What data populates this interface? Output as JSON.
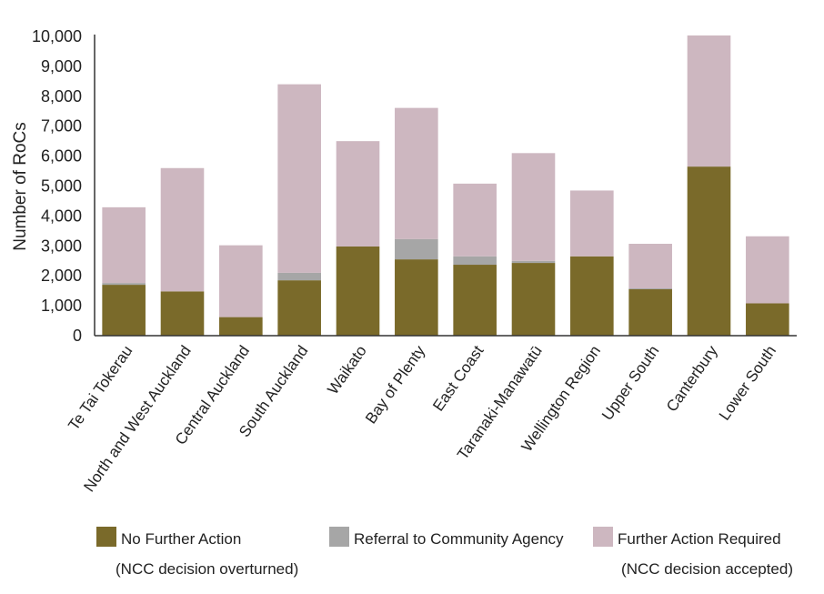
{
  "chart_data": {
    "type": "bar",
    "stacked": true,
    "ylabel": "Number of RoCs",
    "ylim": [
      0,
      10000
    ],
    "yticks": [
      0,
      1000,
      2000,
      3000,
      4000,
      5000,
      6000,
      7000,
      8000,
      9000,
      10000
    ],
    "ytick_labels": [
      "0",
      "1,000",
      "2,000",
      "3,000",
      "4,000",
      "5,000",
      "6,000",
      "7,000",
      "8,000",
      "9,000",
      "10,000"
    ],
    "categories": [
      "Te Tai Tokerau",
      "North and West Auckland",
      "Central Auckland",
      "South Auckland",
      "Waikato",
      "Bay of Plenty",
      "East Coast",
      "Taranaki-Manawatū",
      "Wellington Region",
      "Upper South",
      "Canterbury",
      "Lower South"
    ],
    "series": [
      {
        "name": "No Further Action",
        "color": "#7a6a2a",
        "values": [
          1700,
          1480,
          620,
          1850,
          2980,
          2550,
          2370,
          2430,
          2650,
          1550,
          5650,
          1080
        ]
      },
      {
        "name": "Referral to Community Agency",
        "color": "#a6a6a6",
        "values": [
          60,
          0,
          0,
          250,
          0,
          680,
          280,
          70,
          0,
          30,
          0,
          0
        ]
      },
      {
        "name": "Further Action Required",
        "color": "#cdb7c0",
        "values": [
          2530,
          4120,
          2400,
          6300,
          3520,
          4380,
          2430,
          3600,
          2200,
          1490,
          4380,
          2240
        ]
      }
    ],
    "legend": {
      "placement": "bottom",
      "items": [
        {
          "label": "No Further Action",
          "sublabel": "(NCC decision overturned)",
          "color": "#7a6a2a"
        },
        {
          "label": "Referral to Community Agency",
          "sublabel": "",
          "color": "#a6a6a6"
        },
        {
          "label": "Further Action Required",
          "sublabel": "(NCC decision accepted)",
          "color": "#cdb7c0"
        }
      ]
    },
    "grid": false
  }
}
